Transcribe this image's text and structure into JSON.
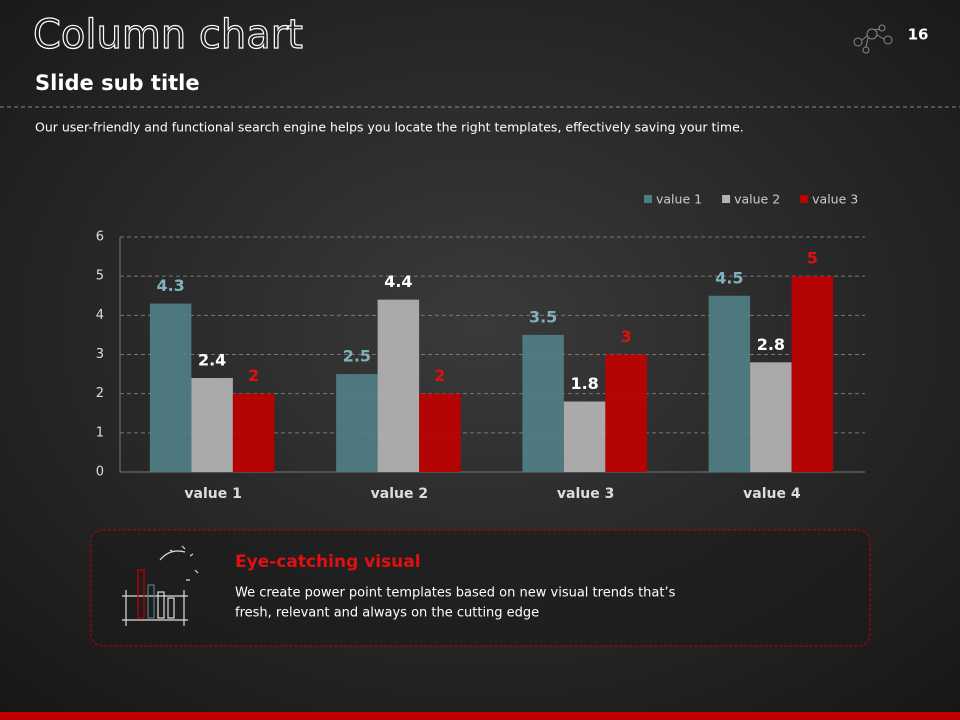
{
  "slide": {
    "title": "Column chart",
    "page_number": "16",
    "subtitle": "Slide sub title",
    "description": "Our user-friendly and functional search engine helps you locate the right templates, effectively saving your time.",
    "callout": {
      "title": "Eye-catching visual",
      "body": [
        "We create power point templates based on new visual trends that’s",
        "fresh, relevant and always on the cutting edge"
      ]
    }
  },
  "chart_data": {
    "type": "bar",
    "categories": [
      "value 1",
      "value 2",
      "value 3",
      "value 4"
    ],
    "series": [
      {
        "name": "value 1",
        "color": "#4f7f86",
        "label_color": "#7fb3bb",
        "values": [
          4.3,
          2.5,
          3.5,
          4.5
        ]
      },
      {
        "name": "value 2",
        "color": "#b4b4b4",
        "label_color": "#ffffff",
        "values": [
          2.4,
          4.4,
          1.8,
          2.8
        ]
      },
      {
        "name": "value 3",
        "color": "#c00000",
        "label_color": "#e01010",
        "values": [
          2,
          2,
          3,
          5
        ]
      }
    ],
    "ylim": [
      0,
      6
    ],
    "yticks": [
      0,
      1,
      2,
      3,
      4,
      5,
      6
    ],
    "grid": true,
    "legend": "top-right"
  }
}
